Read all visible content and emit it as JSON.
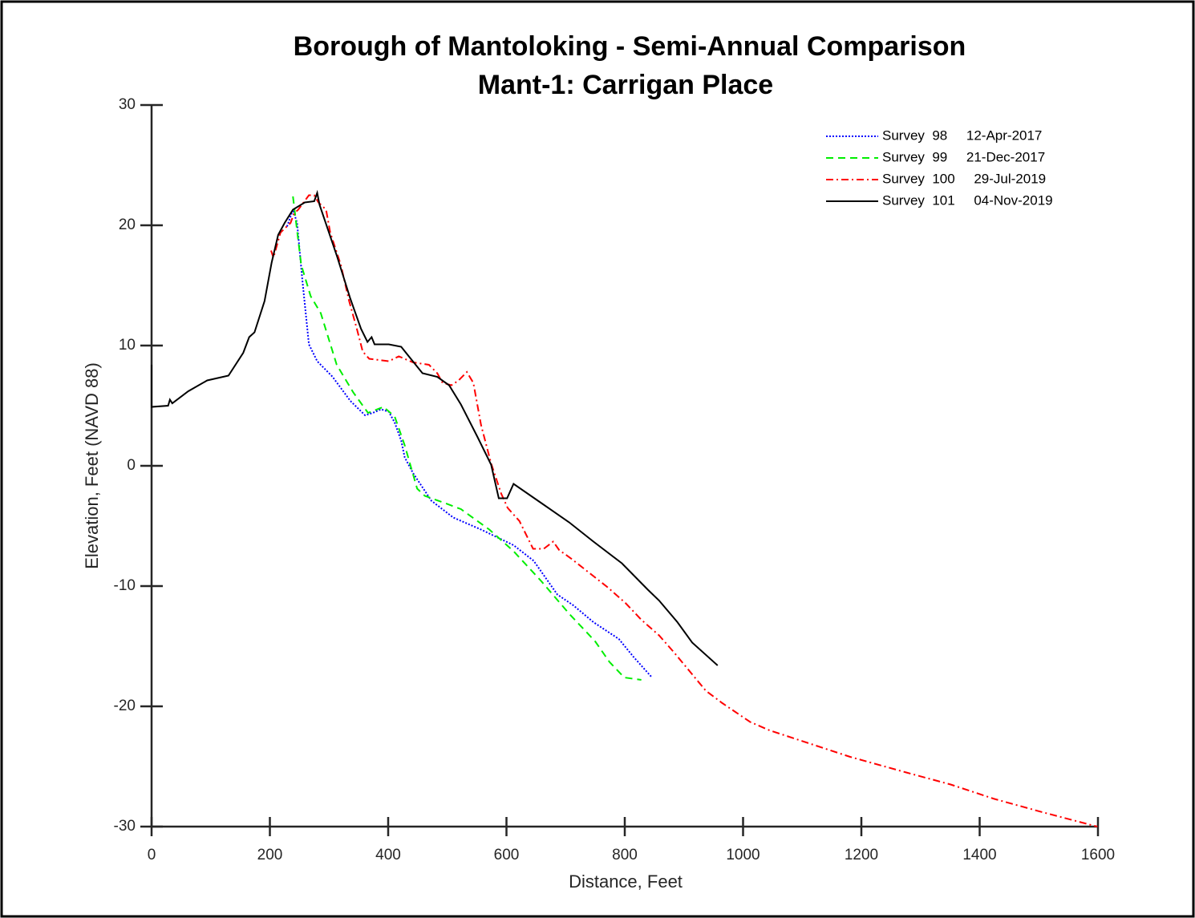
{
  "chart_data": {
    "type": "line",
    "title": "Borough of Mantoloking - Semi-Annual Comparison",
    "subtitle": "Mant-1: Carrigan Place",
    "x_label": "Distance, Feet",
    "y_label": "Elevation, Feet (NAVD 88)",
    "xlim": [
      0,
      1600
    ],
    "xticks": [
      0,
      200,
      400,
      600,
      800,
      1000,
      1200,
      1400,
      1600
    ],
    "ylim": [
      -30,
      30
    ],
    "yticks": [
      -30,
      -20,
      -10,
      0,
      10,
      20,
      30
    ],
    "grid": false,
    "legend": "upper right",
    "series": [
      {
        "name": "Survey  98     12-Apr-2017",
        "color": "#0000ff",
        "line_style": "dotted",
        "x": [
          229,
          239,
          246,
          255,
          266,
          280,
          306,
          336,
          361,
          374,
          388,
          401,
          411,
          422,
          428,
          442,
          473,
          510,
          557,
          612,
          646,
          666,
          686,
          713,
          747,
          790,
          815,
          846
        ],
        "values": [
          19.9,
          21.3,
          20.2,
          15.4,
          10.1,
          8.7,
          7.4,
          5.4,
          4.2,
          4.4,
          4.7,
          4.5,
          3.6,
          2.1,
          0.7,
          -0.6,
          -2.9,
          -4.3,
          -5.3,
          -6.6,
          -7.9,
          -9.3,
          -10.7,
          -11.6,
          -13.0,
          -14.4,
          -15.9,
          -17.6
        ]
      },
      {
        "name": "Survey  99     21-Dec-2017",
        "color": "#00ee00",
        "line_style": "dashed",
        "x": [
          239,
          253,
          269,
          286,
          313,
          341,
          366,
          392,
          411,
          428,
          449,
          462,
          496,
          523,
          571,
          612,
          659,
          706,
          750,
          774,
          799,
          828
        ],
        "values": [
          22.4,
          16.7,
          14.1,
          12.7,
          8.4,
          6.1,
          4.4,
          4.9,
          4.1,
          1.7,
          -1.9,
          -2.5,
          -3.1,
          -3.6,
          -5.3,
          -7.1,
          -9.6,
          -12.3,
          -14.6,
          -16.3,
          -17.6,
          -17.8
        ]
      },
      {
        "name": "Survey  100     29-Jul-2019",
        "color": "#ff0000",
        "line_style": "dashdot",
        "x": [
          202,
          206,
          218,
          235,
          241,
          248,
          266,
          275,
          282,
          295,
          302,
          320,
          334,
          347,
          357,
          368,
          401,
          418,
          442,
          469,
          483,
          492,
          507,
          519,
          533,
          544,
          557,
          574,
          591,
          602,
          622,
          645,
          663,
          679,
          689,
          709,
          740,
          771,
          801,
          828,
          858,
          883,
          910,
          937,
          964,
          1012,
          1045,
          1113,
          1181,
          1276,
          1351,
          1425,
          1506,
          1599
        ],
        "values": [
          17.9,
          17.3,
          19.4,
          20.2,
          21.0,
          21.3,
          22.5,
          22.5,
          21.9,
          21.3,
          19.4,
          16.7,
          13.7,
          11.4,
          9.5,
          8.9,
          8.7,
          9.1,
          8.6,
          8.4,
          7.7,
          6.9,
          6.7,
          7.1,
          7.8,
          6.9,
          3.4,
          0.2,
          -2.3,
          -3.5,
          -4.6,
          -6.9,
          -6.9,
          -6.3,
          -7.0,
          -7.7,
          -8.9,
          -10.1,
          -11.4,
          -12.8,
          -14.1,
          -15.5,
          -17.1,
          -18.7,
          -19.7,
          -21.3,
          -22.0,
          -23.1,
          -24.2,
          -25.5,
          -26.5,
          -27.7,
          -28.8,
          -30.0
        ]
      },
      {
        "name": "Survey  101     04-Nov-2019",
        "color": "#000000",
        "line_style": "solid",
        "x": [
          0,
          0,
          28,
          31,
          35,
          62,
          94,
          130,
          155,
          165,
          174,
          191,
          203,
          214,
          225,
          239,
          259,
          275,
          280,
          284,
          313,
          336,
          354,
          365,
          372,
          377,
          401,
          422,
          435,
          458,
          483,
          503,
          523,
          551,
          574,
          587,
          601,
          612,
          659,
          706,
          747,
          795,
          839,
          858,
          889,
          914,
          957
        ],
        "values": [
          8.4,
          4.9,
          5.0,
          5.5,
          5.2,
          6.2,
          7.1,
          7.5,
          9.4,
          10.7,
          11.1,
          13.7,
          16.9,
          19.2,
          20.2,
          21.3,
          21.9,
          22.0,
          22.7,
          21.7,
          17.5,
          13.9,
          11.4,
          10.3,
          10.7,
          10.1,
          10.1,
          9.9,
          9.1,
          7.7,
          7.4,
          6.7,
          5.1,
          2.4,
          0.1,
          -2.7,
          -2.7,
          -1.5,
          -3.1,
          -4.7,
          -6.3,
          -8.1,
          -10.3,
          -11.2,
          -13.0,
          -14.7,
          -16.6
        ]
      }
    ]
  }
}
